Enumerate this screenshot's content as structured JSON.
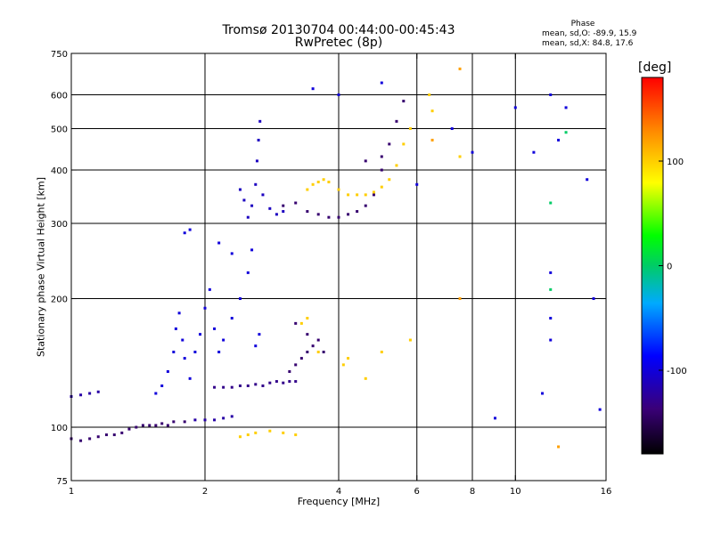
{
  "chart_data": {
    "type": "scatter",
    "title": "Tromsø 20130704 00:44:00-00:45:43",
    "subtitle": "RwPretec (8p)",
    "xlabel": "Frequency [MHz]",
    "ylabel": "Stationary phase Virtual Height [km]",
    "x_scale": "log",
    "y_scale": "log",
    "xlim": [
      1,
      16
    ],
    "ylim": [
      75,
      750
    ],
    "x_ticks": [
      "1",
      "2",
      "4",
      "6",
      "8",
      "10",
      "16"
    ],
    "y_ticks": [
      "75",
      "100",
      "200",
      "300",
      "400",
      "500",
      "600",
      "750"
    ],
    "x_grid": [
      2,
      4,
      6,
      8,
      10
    ],
    "y_grid": [
      100,
      200,
      300,
      400,
      500,
      600
    ],
    "grid": true,
    "stats": {
      "heading": "Phase",
      "o_mode": "mean, sd,O: -89.9, 15.9",
      "x_mode": "mean, sd,X:  84.8, 17.6"
    },
    "colorbar": {
      "title": "[deg]",
      "ticks": [
        "100",
        "0",
        "-100"
      ],
      "tick_values": [
        100,
        0,
        -100
      ],
      "range": [
        -180,
        180
      ],
      "colormap": "rainbow"
    },
    "series": [
      {
        "phase": -140,
        "points": [
          [
            1.0,
            94
          ],
          [
            1.05,
            93
          ],
          [
            1.1,
            94
          ],
          [
            1.15,
            95
          ],
          [
            1.2,
            96
          ],
          [
            1.25,
            96
          ],
          [
            1.3,
            97
          ],
          [
            1.35,
            99
          ],
          [
            1.4,
            100
          ],
          [
            1.45,
            101
          ],
          [
            1.5,
            101
          ],
          [
            1.55,
            101
          ],
          [
            1.6,
            102
          ],
          [
            1.65,
            101
          ],
          [
            1.7,
            103
          ],
          [
            1.8,
            103
          ]
        ]
      },
      {
        "phase": -120,
        "points": [
          [
            1.0,
            118
          ],
          [
            1.05,
            119
          ],
          [
            1.1,
            120
          ],
          [
            1.15,
            121
          ],
          [
            1.9,
            104
          ],
          [
            2.0,
            104
          ],
          [
            2.1,
            104
          ],
          [
            2.2,
            105
          ],
          [
            2.3,
            106
          ]
        ]
      },
      {
        "phase": -100,
        "points": [
          [
            1.55,
            120
          ],
          [
            1.6,
            125
          ],
          [
            1.65,
            135
          ],
          [
            1.7,
            150
          ],
          [
            1.72,
            170
          ],
          [
            1.75,
            185
          ],
          [
            1.78,
            160
          ],
          [
            1.8,
            145
          ],
          [
            1.85,
            130
          ],
          [
            1.9,
            150
          ],
          [
            1.95,
            165
          ],
          [
            2.0,
            190
          ],
          [
            2.05,
            210
          ],
          [
            2.1,
            170
          ],
          [
            2.15,
            150
          ],
          [
            2.2,
            160
          ],
          [
            2.3,
            180
          ],
          [
            2.4,
            200
          ],
          [
            2.5,
            230
          ],
          [
            2.55,
            260
          ],
          [
            2.6,
            155
          ],
          [
            2.65,
            165
          ],
          [
            1.8,
            285
          ],
          [
            1.85,
            290
          ],
          [
            2.15,
            270
          ],
          [
            2.3,
            255
          ]
        ]
      },
      {
        "phase": -130,
        "points": [
          [
            2.1,
            124
          ],
          [
            2.2,
            124
          ],
          [
            2.3,
            124
          ],
          [
            2.4,
            125
          ],
          [
            2.5,
            125
          ],
          [
            2.6,
            126
          ],
          [
            2.7,
            125
          ],
          [
            2.8,
            127
          ],
          [
            2.9,
            128
          ],
          [
            3.0,
            127
          ],
          [
            3.1,
            128
          ],
          [
            3.2,
            128
          ]
        ]
      },
      {
        "phase": -140,
        "points": [
          [
            3.1,
            135
          ],
          [
            3.2,
            140
          ],
          [
            3.3,
            145
          ],
          [
            3.4,
            150
          ],
          [
            3.5,
            155
          ],
          [
            3.6,
            160
          ],
          [
            3.7,
            150
          ],
          [
            3.2,
            175
          ],
          [
            3.4,
            165
          ]
        ]
      },
      {
        "phase": -110,
        "points": [
          [
            2.5,
            310
          ],
          [
            2.55,
            330
          ],
          [
            2.6,
            370
          ],
          [
            2.62,
            420
          ],
          [
            2.64,
            470
          ],
          [
            2.66,
            520
          ],
          [
            2.7,
            350
          ],
          [
            2.8,
            325
          ],
          [
            2.9,
            315
          ],
          [
            3.0,
            320
          ],
          [
            2.4,
            360
          ],
          [
            2.45,
            340
          ]
        ]
      },
      {
        "phase": -140,
        "points": [
          [
            3.0,
            330
          ],
          [
            3.2,
            335
          ],
          [
            3.4,
            320
          ],
          [
            3.6,
            315
          ],
          [
            3.8,
            310
          ],
          [
            4.0,
            310
          ],
          [
            4.2,
            315
          ],
          [
            4.4,
            320
          ],
          [
            4.6,
            330
          ],
          [
            4.8,
            350
          ],
          [
            5.0,
            400
          ],
          [
            5.2,
            460
          ],
          [
            5.4,
            520
          ],
          [
            5.6,
            580
          ],
          [
            4.6,
            420
          ],
          [
            5.0,
            430
          ]
        ]
      },
      {
        "phase": 100,
        "points": [
          [
            3.4,
            360
          ],
          [
            3.5,
            370
          ],
          [
            3.6,
            375
          ],
          [
            3.7,
            380
          ],
          [
            3.8,
            375
          ],
          [
            4.0,
            360
          ],
          [
            4.2,
            350
          ],
          [
            4.4,
            350
          ],
          [
            4.6,
            350
          ],
          [
            4.8,
            355
          ],
          [
            5.0,
            365
          ],
          [
            5.2,
            380
          ],
          [
            5.4,
            410
          ],
          [
            5.6,
            460
          ],
          [
            5.8,
            500
          ],
          [
            6.4,
            600
          ],
          [
            6.5,
            550
          ],
          [
            7.5,
            430
          ]
        ]
      },
      {
        "phase": 100,
        "points": [
          [
            2.4,
            95
          ],
          [
            2.5,
            96
          ],
          [
            2.6,
            97
          ],
          [
            2.8,
            98
          ],
          [
            3.0,
            97
          ],
          [
            3.2,
            96
          ],
          [
            3.3,
            175
          ],
          [
            3.4,
            180
          ],
          [
            3.6,
            150
          ],
          [
            4.1,
            140
          ],
          [
            4.2,
            145
          ],
          [
            4.6,
            130
          ],
          [
            5.0,
            150
          ],
          [
            5.8,
            160
          ]
        ]
      },
      {
        "phase": -100,
        "points": [
          [
            5.0,
            640
          ],
          [
            3.5,
            620
          ],
          [
            4.0,
            600
          ],
          [
            6.0,
            370
          ],
          [
            7.2,
            500
          ],
          [
            8.0,
            440
          ],
          [
            10.0,
            560
          ],
          [
            11.0,
            440
          ],
          [
            12.0,
            600
          ],
          [
            12.5,
            470
          ],
          [
            13.0,
            560
          ],
          [
            14.5,
            380
          ],
          [
            15.0,
            200
          ],
          [
            15.5,
            110
          ],
          [
            12.0,
            230
          ],
          [
            12.0,
            180
          ],
          [
            12.0,
            160
          ],
          [
            9.0,
            105
          ],
          [
            11.5,
            120
          ]
        ]
      },
      {
        "phase": 0,
        "points": [
          [
            12.0,
            335
          ],
          [
            12.0,
            210
          ],
          [
            13.0,
            490
          ]
        ]
      },
      {
        "phase": 120,
        "points": [
          [
            7.5,
            690
          ],
          [
            7.5,
            200
          ],
          [
            12.5,
            90
          ],
          [
            6.5,
            470
          ]
        ]
      }
    ]
  }
}
